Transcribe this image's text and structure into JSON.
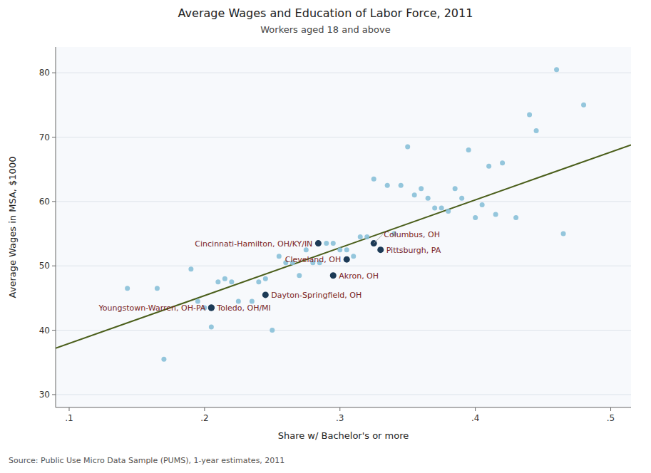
{
  "chart_data": {
    "type": "scatter",
    "title": "Average Wages and Education of Labor Force, 2011",
    "subtitle": "Workers aged 18 and above",
    "x_label": "Share w/ Bachelor's or more",
    "y_label": "Average Wages in MSA, $1000",
    "source": "Source: Public Use Micro Data Sample (PUMS), 1-year estimates, 2011",
    "xlim": [
      0.09,
      0.515
    ],
    "ylim": [
      28,
      84
    ],
    "xticks": [
      {
        "value": 0.1,
        "label": ".1"
      },
      {
        "value": 0.2,
        "label": ".2"
      },
      {
        "value": 0.3,
        "label": ".3"
      },
      {
        "value": 0.4,
        "label": ".4"
      },
      {
        "value": 0.5,
        "label": ".5"
      }
    ],
    "yticks": [
      30,
      40,
      50,
      60,
      70,
      80
    ],
    "grid": "y",
    "series": [
      {
        "type": "line",
        "color": "#4a5e1a",
        "x": [
          0.09,
          0.515
        ],
        "values": [
          37.2,
          68.8
        ]
      },
      {
        "type": "scatter",
        "color": "#88c0d8",
        "x": [
          0.143,
          0.165,
          0.17,
          0.19,
          0.195,
          0.2,
          0.205,
          0.21,
          0.215,
          0.22,
          0.225,
          0.235,
          0.24,
          0.245,
          0.25,
          0.255,
          0.26,
          0.265,
          0.27,
          0.275,
          0.28,
          0.285,
          0.29,
          0.295,
          0.3,
          0.305,
          0.31,
          0.315,
          0.32,
          0.325,
          0.335,
          0.34,
          0.345,
          0.35,
          0.355,
          0.36,
          0.365,
          0.37,
          0.375,
          0.38,
          0.385,
          0.39,
          0.395,
          0.4,
          0.405,
          0.41,
          0.415,
          0.42,
          0.43,
          0.44,
          0.445,
          0.46,
          0.465,
          0.48
        ],
        "values": [
          46.5,
          46.5,
          35.5,
          49.5,
          44.5,
          43.5,
          40.5,
          47.5,
          48.0,
          47.5,
          44.5,
          44.5,
          47.5,
          48.0,
          40.0,
          51.5,
          50.5,
          50.5,
          48.5,
          52.5,
          50.5,
          50.5,
          53.5,
          53.5,
          52.5,
          52.5,
          51.5,
          54.5,
          54.5,
          63.5,
          62.5,
          55.0,
          62.5,
          68.5,
          61.0,
          62.0,
          60.5,
          59.0,
          59.0,
          58.5,
          62.0,
          60.5,
          68.0,
          57.5,
          59.5,
          65.5,
          58.0,
          66.0,
          57.5,
          73.5,
          71.0,
          80.5,
          55.0,
          75.0
        ]
      },
      {
        "type": "scatter",
        "color": "#1c3a56",
        "x": [
          0.284,
          0.325,
          0.33,
          0.305,
          0.295,
          0.245,
          0.205,
          0.205
        ],
        "values": [
          53.5,
          53.5,
          52.5,
          51.0,
          48.5,
          45.5,
          43.5,
          43.5
        ],
        "labels": [
          "Cincinnati-Hamilton, OH/KY/IN",
          "Columbus, OH",
          "Pittsburgh, PA",
          "Cleveland, OH",
          "Akron, OH",
          "Dayton-Springfield, OH",
          "Toledo, OH/MI",
          "Youngstown-Warren, OH-PA"
        ]
      }
    ]
  }
}
